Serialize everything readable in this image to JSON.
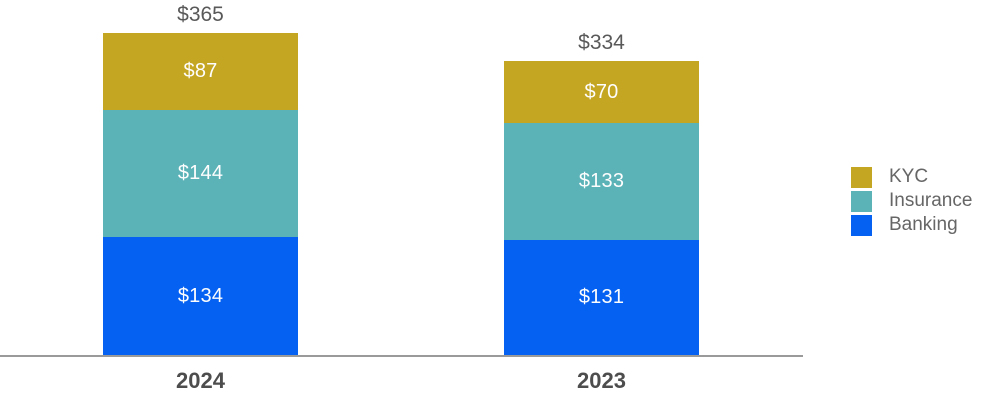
{
  "chart_data": {
    "type": "bar",
    "stacked": true,
    "orientation": "vertical",
    "categories": [
      "2024",
      "2023"
    ],
    "series": [
      {
        "name": "Banking",
        "color": "#0561f2",
        "values": [
          134,
          131
        ],
        "value_labels": [
          "$134",
          "$131"
        ]
      },
      {
        "name": "Insurance",
        "color": "#5bb3b8",
        "values": [
          144,
          133
        ],
        "value_labels": [
          "$144",
          "$133"
        ]
      },
      {
        "name": "KYC",
        "color": "#c5a623",
        "values": [
          87,
          70
        ],
        "value_labels": [
          "$87",
          "$70"
        ]
      }
    ],
    "totals": [
      365,
      334
    ],
    "total_labels": [
      "$365",
      "$334"
    ],
    "title": "",
    "xlabel": "",
    "ylabel": "",
    "value_prefix": "$",
    "grid": false,
    "legend_position": "right",
    "ylim": [
      0,
      365
    ]
  },
  "legend": {
    "items": [
      {
        "label": "KYC",
        "color": "#c5a623"
      },
      {
        "label": "Insurance",
        "color": "#5bb3b8"
      },
      {
        "label": "Banking",
        "color": "#0561f2"
      }
    ]
  },
  "colors": {
    "background": "#ffffff",
    "axis_line": "#9a9a9a",
    "total_label": "#595959",
    "category_label": "#4d4d4d",
    "segment_label": "#fdfdfd",
    "legend_label": "#666666"
  }
}
